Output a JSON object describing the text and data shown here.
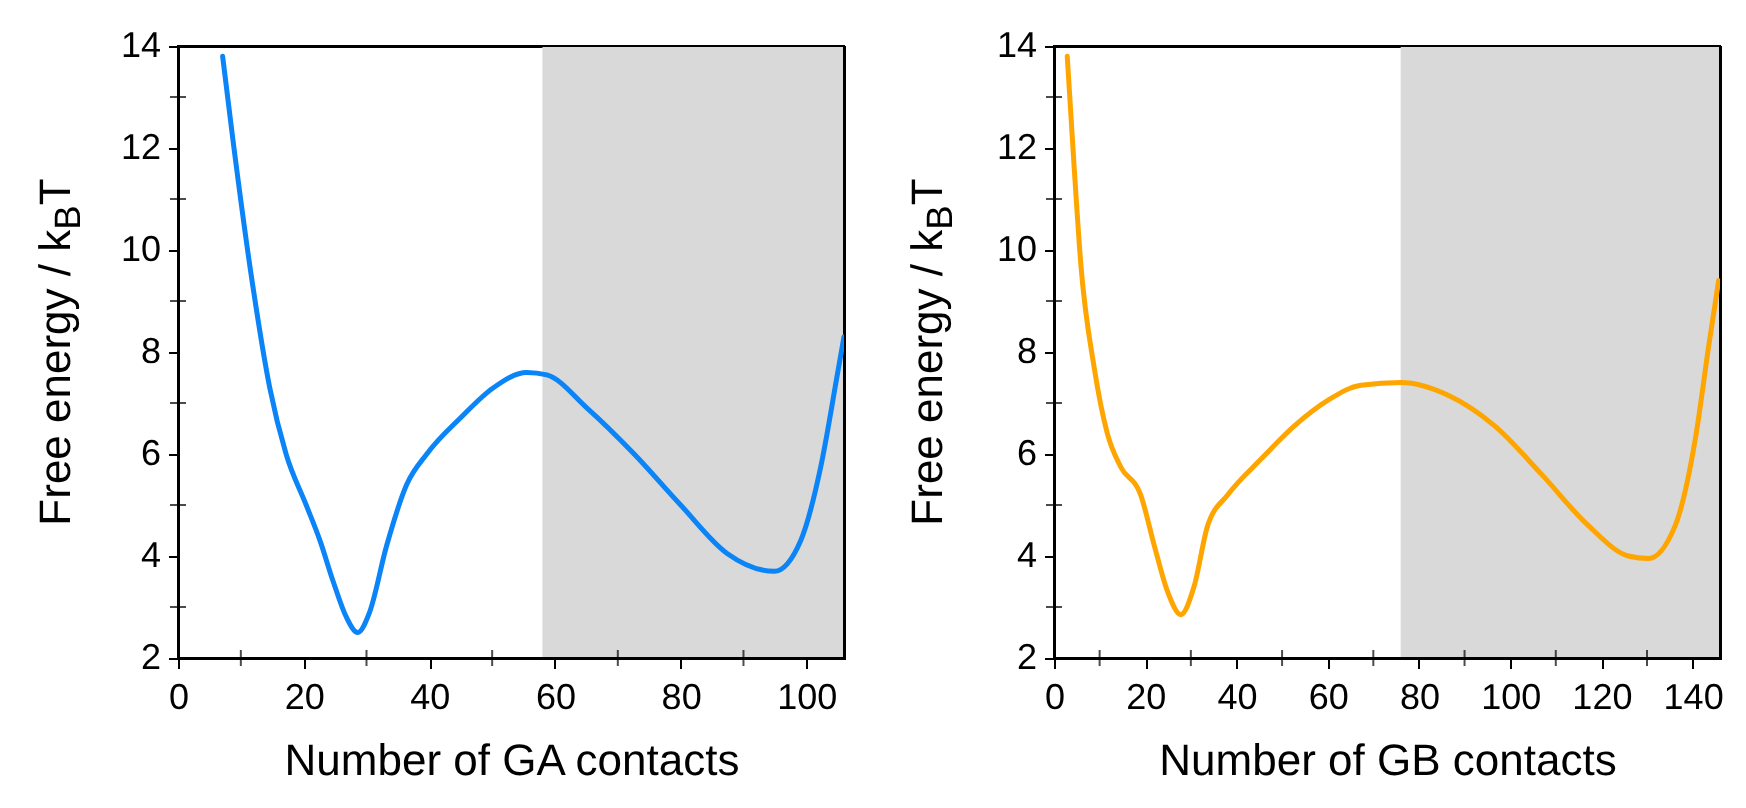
{
  "chart_data": [
    {
      "type": "line",
      "xlabel": "Number of GA contacts",
      "ylabel": "Free energy / k$_{B}$T",
      "x": [
        7.1,
        8.7,
        11.9,
        14.6,
        17.2,
        20.4,
        22.6,
        24.7,
        26.8,
        28.6,
        30.5,
        33.2,
        36.4,
        39.6,
        44.9,
        50.2,
        55.5,
        58.7,
        65.1,
        72.6,
        80,
        87.4,
        94.9,
        99.1,
        102.3,
        105,
        106
      ],
      "series": [
        {
          "color": "#0a84f7",
          "values": [
            13.8,
            12.2,
            9.3,
            7.3,
            6.0,
            5.0,
            4.3,
            3.5,
            2.8,
            2.5,
            2.9,
            4.2,
            5.4,
            6.0,
            6.7,
            7.3,
            7.6,
            7.55,
            6.9,
            6.0,
            5.0,
            4.05,
            3.7,
            4.3,
            5.75,
            7.6,
            8.3
          ]
        }
      ],
      "xlim": [
        0,
        106
      ],
      "ylim": [
        2,
        14
      ],
      "xticks": [
        0,
        {
          "value": 10,
          "label": null
        },
        20,
        {
          "value": 30,
          "label": null
        },
        40,
        {
          "value": 50,
          "label": null
        },
        60,
        {
          "value": 70,
          "label": null
        },
        80,
        {
          "value": 90,
          "label": null
        },
        100
      ],
      "yticks": [
        2,
        {
          "value": 3,
          "label": null
        },
        4,
        {
          "value": 5,
          "label": null
        },
        6,
        {
          "value": 7,
          "label": null
        },
        8,
        {
          "value": 9,
          "label": null
        },
        10,
        {
          "value": 11,
          "label": null
        },
        12,
        {
          "value": 13,
          "label": null
        },
        14
      ],
      "bands": [
        {
          "axis": "x",
          "from": 58,
          "to": 106,
          "color": "#d9d9d9"
        }
      ]
    },
    {
      "type": "line",
      "xlabel": "Number of GB contacts",
      "ylabel": "Free energy / k$_{B}$T",
      "x": [
        2.9,
        4.4,
        5.9,
        8.8,
        11.7,
        14.6,
        19,
        22,
        24.9,
        27.8,
        30.7,
        33.7,
        38.1,
        45.4,
        52.7,
        60,
        67.3,
        76.1,
        86.4,
        96.6,
        106.9,
        117.1,
        125.9,
        130.3,
        136.2,
        140.6,
        143.5,
        145.7
      ],
      "series": [
        {
          "color": "#ffa500",
          "values": [
            13.8,
            11.65,
            9.7,
            7.7,
            6.4,
            5.75,
            5.2,
            4.2,
            3.3,
            2.85,
            3.4,
            4.6,
            5.2,
            5.9,
            6.55,
            7.05,
            7.35,
            7.4,
            7.15,
            6.55,
            5.6,
            4.6,
            4.0,
            3.95,
            4.6,
            6.3,
            8.1,
            9.4
          ]
        }
      ],
      "xlim": [
        0,
        146
      ],
      "ylim": [
        2,
        14
      ],
      "xticks": [
        0,
        {
          "value": 10,
          "label": null
        },
        20,
        {
          "value": 30,
          "label": null
        },
        40,
        {
          "value": 50,
          "label": null
        },
        60,
        {
          "value": 70,
          "label": null
        },
        80,
        {
          "value": 90,
          "label": null
        },
        100,
        {
          "value": 110,
          "label": null
        },
        120,
        {
          "value": 130,
          "label": null
        },
        140
      ],
      "yticks": [
        2,
        {
          "value": 3,
          "label": null
        },
        4,
        {
          "value": 5,
          "label": null
        },
        6,
        {
          "value": 7,
          "label": null
        },
        8,
        {
          "value": 9,
          "label": null
        },
        10,
        {
          "value": 11,
          "label": null
        },
        12,
        {
          "value": 13,
          "label": null
        },
        14
      ],
      "bands": [
        {
          "axis": "x",
          "from": 76,
          "to": 146,
          "color": "#d9d9d9"
        }
      ]
    }
  ]
}
